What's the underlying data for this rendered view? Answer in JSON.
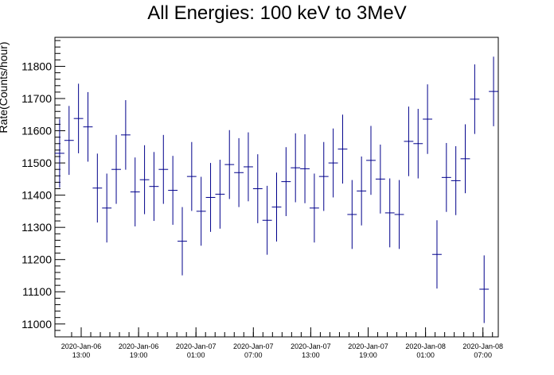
{
  "chart_data": {
    "type": "scatter",
    "title": "All Energies:  100 keV to 3MeV",
    "xlabel": "",
    "ylabel": "Rate(Counts/hour)",
    "ylim": [
      10960,
      11890
    ],
    "y_ticks": [
      11000,
      11100,
      11200,
      11300,
      11400,
      11500,
      11600,
      11700,
      11800
    ],
    "x_tick_labels": [
      {
        "date": "2020-Jan-06",
        "time": "13:00"
      },
      {
        "date": "2020-Jan-06",
        "time": "19:00"
      },
      {
        "date": "2020-Jan-07",
        "time": "01:00"
      },
      {
        "date": "2020-Jan-07",
        "time": "07:00"
      },
      {
        "date": "2020-Jan-07",
        "time": "13:00"
      },
      {
        "date": "2020-Jan-07",
        "time": "19:00"
      },
      {
        "date": "2020-Jan-08",
        "time": "01:00"
      },
      {
        "date": "2020-Jan-08",
        "time": "07:00"
      }
    ],
    "grid": false,
    "legend": "none",
    "color": "#00008b",
    "series": [
      {
        "values": [
          11530,
          11570,
          11638,
          11612,
          11422,
          11360,
          11480,
          11587,
          11410,
          11448,
          11427,
          11480,
          11415,
          11257,
          11458,
          11350,
          11393,
          11403,
          11495,
          11470,
          11488,
          11420,
          11322,
          11363,
          11442,
          11485,
          11482,
          11360,
          11458,
          11500,
          11543,
          11340,
          11413,
          11508,
          11450,
          11345,
          11340,
          11567,
          11560,
          11636,
          11216,
          11455,
          11445,
          11513,
          11698,
          11108,
          11722
        ],
        "errors": [
          107,
          107,
          108,
          108,
          107,
          107,
          107,
          108,
          107,
          107,
          107,
          107,
          107,
          106,
          107,
          107,
          107,
          107,
          107,
          107,
          107,
          107,
          107,
          107,
          107,
          107,
          107,
          107,
          107,
          107,
          107,
          107,
          107,
          107,
          107,
          107,
          107,
          108,
          108,
          108,
          106,
          107,
          107,
          107,
          108,
          105,
          108
        ]
      }
    ]
  }
}
